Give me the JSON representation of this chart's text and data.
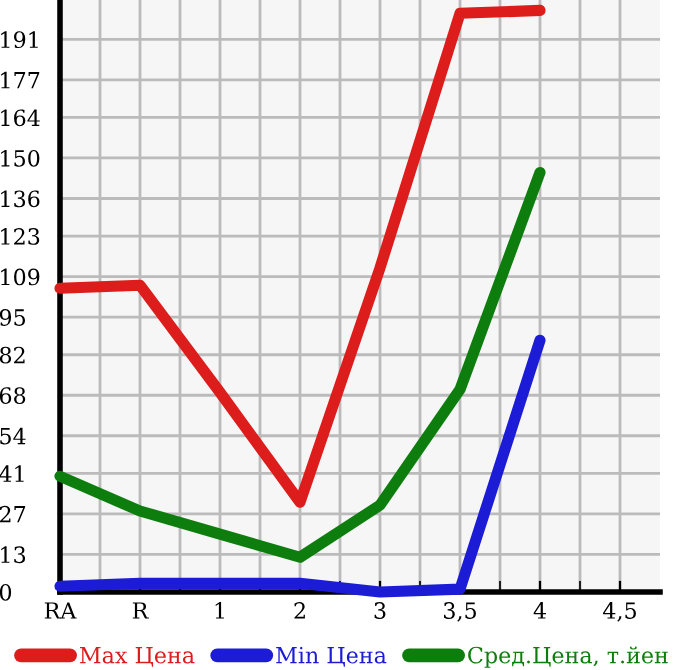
{
  "chart_data": {
    "type": "line",
    "categories": [
      "RA",
      "R",
      "1",
      "2",
      "3",
      "3,5",
      "4",
      "4,5"
    ],
    "series": [
      {
        "name": "Max Цена",
        "color": "#dd1c1c",
        "values": [
          105,
          106,
          69,
          31,
          112,
          200,
          201,
          null
        ]
      },
      {
        "name": "Min Цена",
        "color": "#1c1cd6",
        "values": [
          2,
          3,
          3,
          3,
          0,
          1,
          87,
          null
        ]
      },
      {
        "name": "Сред.Цена, т.йен",
        "color": "#0d7e0d",
        "values": [
          40,
          28,
          20,
          12,
          30,
          70,
          145,
          null
        ]
      }
    ],
    "ylim": [
      0,
      204.6
    ],
    "yticks": [
      0,
      13,
      27,
      41,
      54,
      68,
      82,
      95,
      109,
      123,
      136,
      150,
      164,
      177,
      191
    ],
    "grid": true,
    "legend": "bottom",
    "marker": "none",
    "line_style": "solid"
  }
}
